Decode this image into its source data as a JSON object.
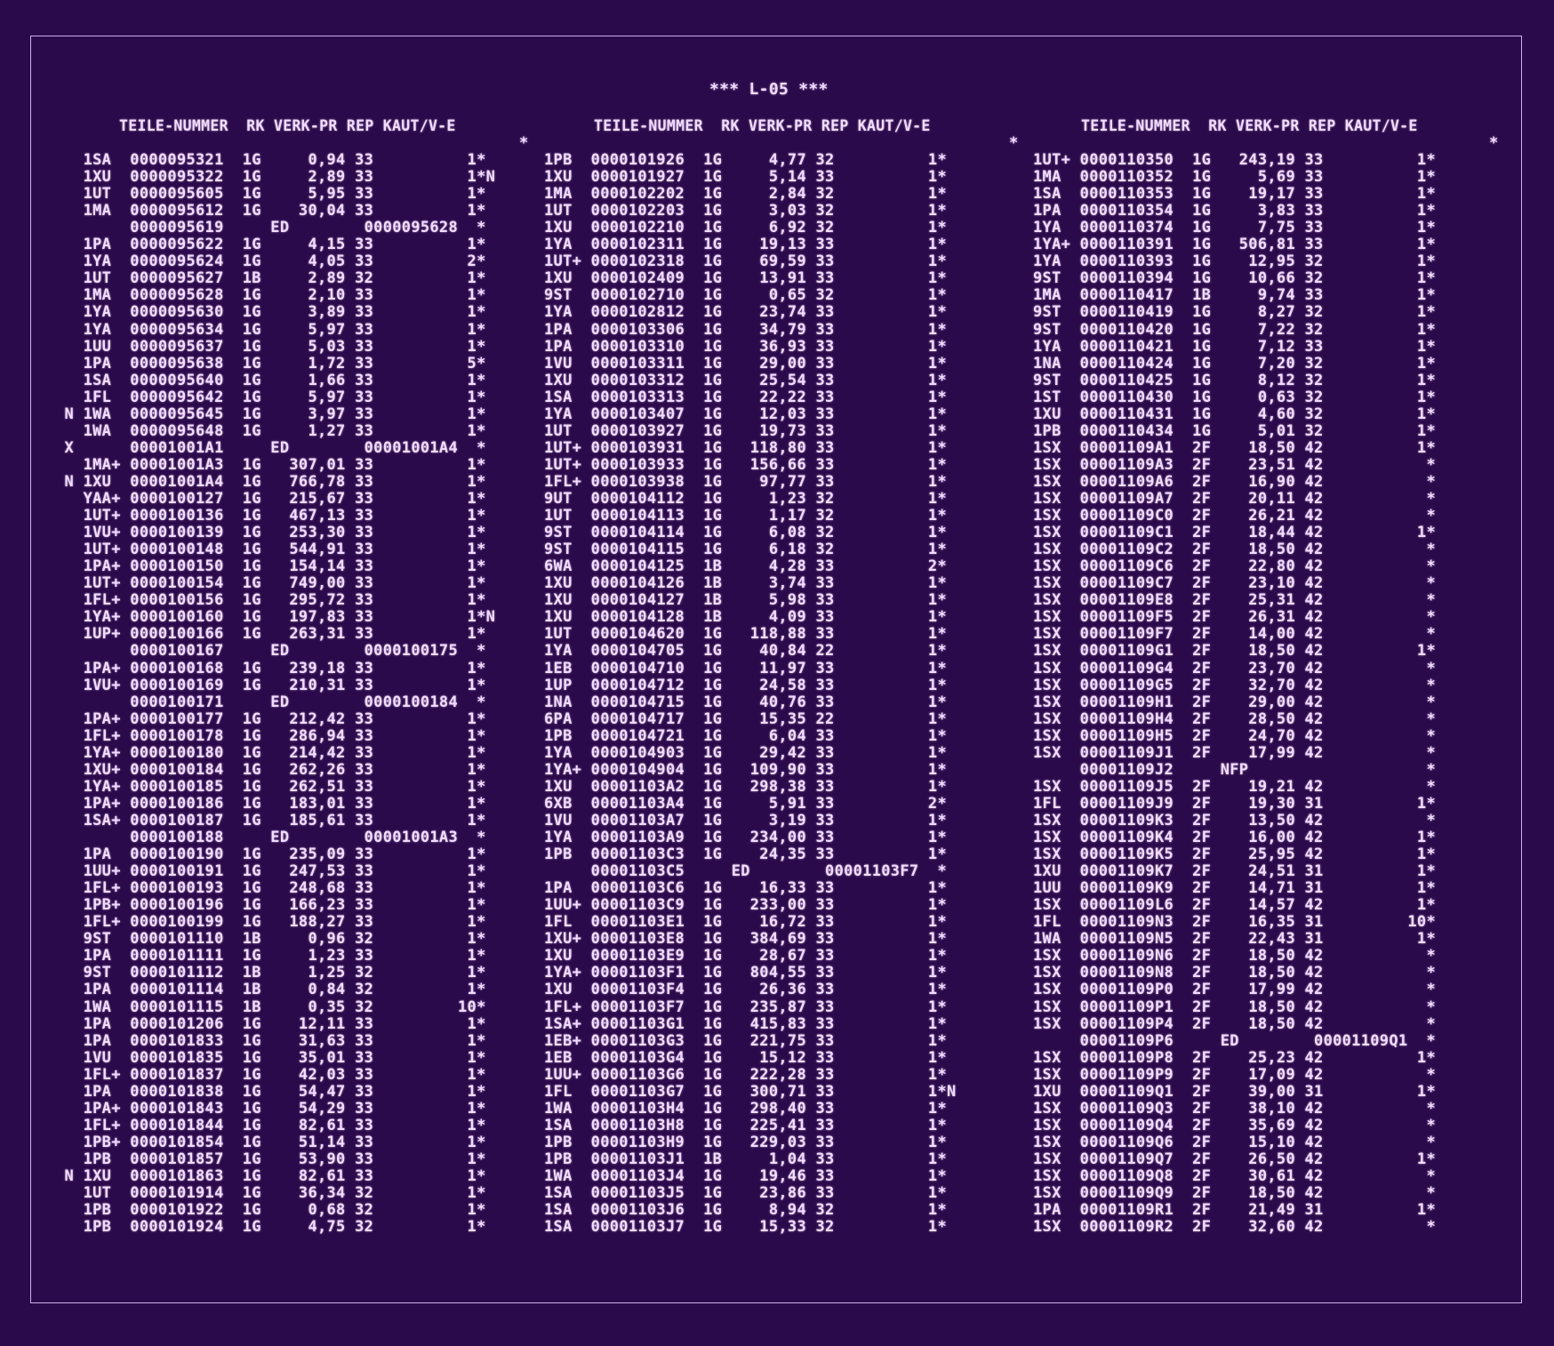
{
  "title": "*** L-05 ***",
  "headers": {
    "col1": "TEILE-NUMMER  RK VERK-PR REP KAUT/V-E",
    "col2": "TEILE-NUMMER  RK VERK-PR REP KAUT/V-E",
    "col3": "TEILE-NUMMER  RK VERK-PR REP KAUT/V-E"
  },
  "columns": [
    {
      "top_mark": "*",
      "rows": [
        "   1SA  0000095321  1G     0,94 33          1*",
        "   1XU  0000095322  1G     2,89 33          1*N",
        "   1UT  0000095605  1G     5,95 33          1*",
        "   1MA  0000095612  1G    30,04 33          1*",
        "        0000095619     ED        0000095628  *",
        "   1PA  0000095622  1G     4,15 33          1*",
        "   1YA  0000095624  1G     4,05 33          2*",
        "   1UT  0000095627  1B     2,89 32          1*",
        "   1MA  0000095628  1G     2,10 33          1*",
        "   1YA  0000095630  1G     3,89 33          1*",
        "   1YA  0000095634  1G     5,97 33          1*",
        "   1UU  0000095637  1G     5,03 33          1*",
        "   1PA  0000095638  1G     1,72 33          5*",
        "   1SA  0000095640  1G     1,66 33          1*",
        "   1FL  0000095642  1G     5,97 33          1*",
        " N 1WA  0000095645  1G     3,97 33          1*",
        "   1WA  0000095648  1G     1,27 33          1*",
        " X      00001001A1     ED        00001001A4  *",
        "   1MA+ 00001001A3  1G   307,01 33          1*",
        " N 1XU  00001001A4  1G   766,78 33          1*",
        "   YAA+ 0000100127  1G   215,67 33          1*",
        "   1UT+ 0000100136  1G   467,13 33          1*",
        "   1VU+ 0000100139  1G   253,30 33          1*",
        "   1UT+ 0000100148  1G   544,91 33          1*",
        "   1PA+ 0000100150  1G   154,14 33          1*",
        "   1UT+ 0000100154  1G   749,00 33          1*",
        "   1FL+ 0000100156  1G   295,72 33          1*",
        "   1YA+ 0000100160  1G   197,83 33          1*N",
        "   1UP+ 0000100166  1G   263,31 33          1*",
        "        0000100167     ED        0000100175  *",
        "   1PA+ 0000100168  1G   239,18 33          1*",
        "   1VU+ 0000100169  1G   210,31 33          1*",
        "        0000100171     ED        0000100184  *",
        "   1PA+ 0000100177  1G   212,42 33          1*",
        "   1FL+ 0000100178  1G   286,94 33          1*",
        "   1YA+ 0000100180  1G   214,42 33          1*",
        "   1XU+ 0000100184  1G   262,26 33          1*",
        "   1YA+ 0000100185  1G   262,51 33          1*",
        "   1PA+ 0000100186  1G   183,01 33          1*",
        "   1SA+ 0000100187  1G   185,61 33          1*",
        "        0000100188     ED        00001001A3  *",
        "   1PA  0000100190  1G   235,09 33          1*",
        "   1UU+ 0000100191  1G   247,53 33          1*",
        "   1FL+ 0000100193  1G   248,68 33          1*",
        "   1PB+ 0000100196  1G   166,23 33          1*",
        "   1FL+ 0000100199  1G   188,27 33          1*",
        "   9ST  0000101110  1B     0,96 32          1*",
        "   1PA  0000101111  1G     1,23 33          1*",
        "   9ST  0000101112  1B     1,25 32          1*",
        "   1PA  0000101114  1B     0,84 32          1*",
        "   1WA  0000101115  1B     0,35 32         10*",
        "   1PA  0000101206  1G    12,11 33          1*",
        "   1PA  0000101833  1G    31,63 33          1*",
        "   1VU  0000101835  1G    35,01 33          1*",
        "   1FL+ 0000101837  1G    42,03 33          1*",
        "   1PA  0000101838  1G    54,47 33          1*",
        "   1PA+ 0000101843  1G    54,29 33          1*",
        "   1FL+ 0000101844  1G    82,61 33          1*",
        "   1PB+ 0000101854  1G    51,14 33          1*",
        "   1PB  0000101857  1G    53,90 33          1*",
        " N 1XU  0000101863  1G    82,61 33          1*",
        "   1UT  0000101914  1G    36,34 32          1*",
        "   1PB  0000101922  1G     0,68 32          1*",
        "   1PB  0000101924  1G     4,75 32          1*"
      ]
    },
    {
      "top_mark": "*",
      "rows": [
        "1PB  0000101926  1G     4,77 32          1*",
        "1XU  0000101927  1G     5,14 33          1*",
        "1MA  0000102202  1G     2,84 32          1*",
        "1UT  0000102203  1G     3,03 32          1*",
        "1XU  0000102210  1G     6,92 32          1*",
        "1YA  0000102311  1G    19,13 33          1*",
        "1UT+ 0000102318  1G    69,59 33          1*",
        "1XU  0000102409  1G    13,91 33          1*",
        "9ST  0000102710  1G     0,65 32          1*",
        "1YA  0000102812  1G    23,74 33          1*",
        "1PA  0000103306  1G    34,79 33          1*",
        "1PA  0000103310  1G    36,93 33          1*",
        "1VU  0000103311  1G    29,00 33          1*",
        "1XU  0000103312  1G    25,54 33          1*",
        "1SA  0000103313  1G    22,22 33          1*",
        "1YA  0000103407  1G    12,03 33          1*",
        "1UT  0000103927  1G    19,73 33          1*",
        "1UT+ 0000103931  1G   118,80 33          1*",
        "1UT+ 0000103933  1G   156,66 33          1*",
        "1FL+ 0000103938  1G    97,77 33          1*",
        "9UT  0000104112  1G     1,23 32          1*",
        "1UT  0000104113  1G     1,17 32          1*",
        "9ST  0000104114  1G     6,08 32          1*",
        "9ST  0000104115  1G     6,18 32          1*",
        "6WA  0000104125  1B     4,28 33          2*",
        "1XU  0000104126  1B     3,74 33          1*",
        "1XU  0000104127  1B     5,98 33          1*",
        "1XU  0000104128  1B     4,09 33          1*",
        "1UT  0000104620  1G   118,88 33          1*",
        "1YA  0000104705  1G    40,84 22          1*",
        "1EB  0000104710  1G    11,97 33          1*",
        "1UP  0000104712  1G    24,58 33          1*",
        "1NA  0000104715  1G    40,76 33          1*",
        "6PA  0000104717  1G    15,35 22          1*",
        "1PB  0000104721  1G     6,04 33          1*",
        "1YA  0000104903  1G    29,42 33          1*",
        "1YA+ 0000104904  1G   109,90 33          1*",
        "1XU  00001103A2  1G   298,38 33          1*",
        "6XB  00001103A4  1G     5,91 33          2*",
        "1VU  00001103A7  1G     3,19 33          1*",
        "1YA  00001103A9  1G   234,00 33          1*",
        "1PB  00001103C3  1G    24,35 33          1*",
        "     00001103C5     ED        00001103F7  *",
        "1PA  00001103C6  1G    16,33 33          1*",
        "1UU+ 00001103C9  1G   233,00 33          1*",
        "1FL  00001103E1  1G    16,72 33          1*",
        "1XU+ 00001103E8  1G   384,69 33          1*",
        "1XU  00001103E9  1G    28,67 33          1*",
        "1YA+ 00001103F1  1G   804,55 33          1*",
        "1XU  00001103F4  1G    26,36 33          1*",
        "1FL+ 00001103F7  1G   235,87 33          1*",
        "1SA+ 00001103G1  1G   415,83 33          1*",
        "1EB+ 00001103G3  1G   221,75 33          1*",
        "1EB  00001103G4  1G    15,12 33          1*",
        "1UU+ 00001103G6  1G   222,28 33          1*",
        "1FL  00001103G7  1G   300,71 33          1*N",
        "1WA  00001103H4  1G   298,40 33          1*",
        "1SA  00001103H8  1G   225,41 33          1*",
        "1PB  00001103H9  1G   229,03 33          1*",
        "1PB  00001103J1  1B     1,04 33          1*",
        "1WA  00001103J4  1G    19,46 33          1*",
        "1SA  00001103J5  1G    23,86 33          1*",
        "1SA  00001103J6  1G     8,94 32          1*",
        "1SA  00001103J7  1G    15,33 32          1*"
      ]
    },
    {
      "top_mark": "*",
      "rows": [
        "1UT+ 0000110350  1G   243,19 33          1*",
        "1MA  0000110352  1G     5,69 33          1*",
        "1SA  0000110353  1G    19,17 33          1*",
        "1PA  0000110354  1G     3,83 33          1*",
        "1YA  0000110374  1G     7,75 33          1*",
        "1YA+ 0000110391  1G   506,81 33          1*",
        "1YA  0000110393  1G    12,95 32          1*",
        "9ST  0000110394  1G    10,66 32          1*",
        "1MA  0000110417  1B     9,74 33          1*",
        "9ST  0000110419  1G     8,27 32          1*",
        "9ST  0000110420  1G     7,22 32          1*",
        "1YA  0000110421  1G     7,12 33          1*",
        "1NA  0000110424  1G     7,20 32          1*",
        "9ST  0000110425  1G     8,12 32          1*",
        "1ST  0000110430  1G     0,63 32          1*",
        "1XU  0000110431  1G     4,60 32          1*",
        "1PB  0000110434  1G     5,01 32          1*",
        "1SX  00001109A1  2F    18,50 42          1*",
        "1SX  00001109A3  2F    23,51 42           *",
        "1SX  00001109A6  2F    16,90 42           *",
        "1SX  00001109A7  2F    20,11 42           *",
        "1SX  00001109C0  2F    26,21 42           *",
        "1SX  00001109C1  2F    18,44 42          1*",
        "1SX  00001109C2  2F    18,50 42           *",
        "1SX  00001109C6  2F    22,80 42           *",
        "1SX  00001109C7  2F    23,10 42           *",
        "1SX  00001109E8  2F    25,31 42           *",
        "1SX  00001109F5  2F    26,31 42           *",
        "1SX  00001109F7  2F    14,00 42           *",
        "1SX  00001109G1  2F    18,50 42          1*",
        "1SX  00001109G4  2F    23,70 42           *",
        "1SX  00001109G5  2F    32,70 42           *",
        "1SX  00001109H1  2F    29,00 42           *",
        "1SX  00001109H4  2F    28,50 42           *",
        "1SX  00001109H5  2F    24,70 42           *",
        "1SX  00001109J1  2F    17,99 42           *",
        "     00001109J2     NFP                   *",
        "1SX  00001109J5  2F    19,21 42           *",
        "1FL  00001109J9  2F    19,30 31          1*",
        "1SX  00001109K3  2F    13,50 42           *",
        "1SX  00001109K4  2F    16,00 42          1*",
        "1SX  00001109K5  2F    25,95 42          1*",
        "1XU  00001109K7  2F    24,51 31          1*",
        "1UU  00001109K9  2F    14,71 31          1*",
        "1SX  00001109L6  2F    14,57 42          1*",
        "1FL  00001109N3  2F    16,35 31         10*",
        "1WA  00001109N5  2F    22,43 31          1*",
        "1SX  00001109N6  2F    18,50 42           *",
        "1SX  00001109N8  2F    18,50 42           *",
        "1SX  00001109P0  2F    17,99 42           *",
        "1SX  00001109P1  2F    18,50 42           *",
        "1SX  00001109P4  2F    18,50 42           *",
        "     00001109P6     ED        00001109Q1  *",
        "1SX  00001109P8  2F    25,23 42          1*",
        "1SX  00001109P9  2F    17,09 42           *",
        "1XU  00001109Q1  2F    39,00 31          1*",
        "1SX  00001109Q3  2F    38,10 42           *",
        "1SX  00001109Q4  2F    35,69 42           *",
        "1SX  00001109Q6  2F    15,10 42           *",
        "1SX  00001109Q7  2F    26,50 42          1*",
        "1SX  00001109Q8  2F    30,61 42           *",
        "1SX  00001109Q9  2F    18,50 42           *",
        "1PA  00001109R1  2F    21,49 31          1*",
        "1SX  00001109R2  2F    32,60 42           *"
      ]
    }
  ]
}
